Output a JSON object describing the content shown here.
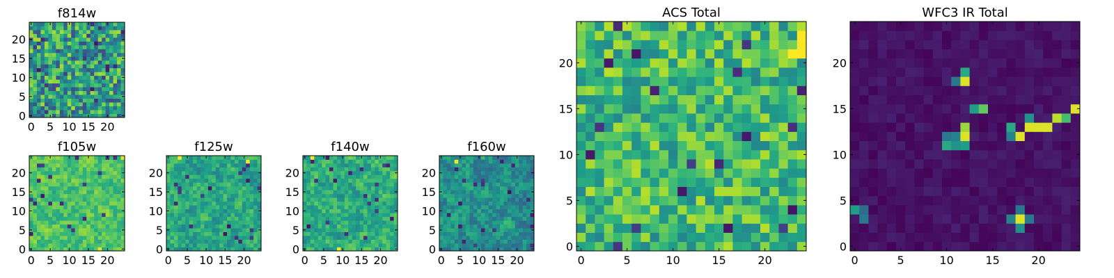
{
  "figure": {
    "description_type": "heatmap grid"
  },
  "chart_data": [
    {
      "type": "heatmap",
      "title": "f814w",
      "size": 25,
      "xticks": [
        0,
        5,
        10,
        15,
        20
      ],
      "yticks": [
        0,
        5,
        10,
        15,
        20
      ],
      "colormap": "viridis",
      "seed": 11,
      "base": 0.55,
      "noise": 0.32,
      "smooth": 0,
      "hot": [
        [
          24,
          24,
          0.35
        ],
        [
          23,
          24,
          0.25
        ]
      ]
    },
    {
      "type": "heatmap",
      "title": "f105w",
      "size": 25,
      "xticks": [
        0,
        5,
        10,
        15,
        20
      ],
      "yticks": [
        0,
        5,
        10,
        15,
        20
      ],
      "colormap": "viridis",
      "seed": 23,
      "base": 0.72,
      "noise": 0.22,
      "smooth": 1,
      "hot": [
        [
          18,
          0,
          0.3
        ],
        [
          24,
          24,
          0.3
        ]
      ]
    },
    {
      "type": "heatmap",
      "title": "f125w",
      "size": 25,
      "xticks": [
        0,
        5,
        10,
        15,
        20
      ],
      "yticks": [
        0,
        5,
        10,
        15,
        20
      ],
      "colormap": "viridis",
      "seed": 37,
      "base": 0.6,
      "noise": 0.25,
      "smooth": 1,
      "hot": [
        [
          21,
          23,
          0.35
        ],
        [
          3,
          24,
          0.3
        ]
      ]
    },
    {
      "type": "heatmap",
      "title": "f140w",
      "size": 25,
      "xticks": [
        0,
        5,
        10,
        15,
        20
      ],
      "yticks": [
        0,
        5,
        10,
        15,
        20
      ],
      "colormap": "viridis",
      "seed": 41,
      "base": 0.62,
      "noise": 0.25,
      "smooth": 1,
      "hot": [
        [
          2,
          24,
          0.35
        ],
        [
          9,
          0,
          0.3
        ]
      ]
    },
    {
      "type": "heatmap",
      "title": "f160w",
      "size": 25,
      "xticks": [
        0,
        5,
        10,
        15,
        20
      ],
      "yticks": [
        0,
        5,
        10,
        15,
        20
      ],
      "colormap": "viridis",
      "seed": 53,
      "base": 0.5,
      "noise": 0.25,
      "smooth": 1,
      "hot": [
        [
          4,
          23,
          0.4
        ],
        [
          11,
          24,
          0.3
        ]
      ]
    },
    {
      "type": "heatmap",
      "title": "ACS Total",
      "size": 25,
      "xticks": [
        0,
        5,
        10,
        15,
        20
      ],
      "yticks": [
        0,
        5,
        10,
        15,
        20
      ],
      "colormap": "viridis",
      "seed": 67,
      "base": 0.68,
      "noise": 0.22,
      "smooth": 0,
      "hot": [
        [
          24,
          24,
          0.4
        ],
        [
          24,
          23,
          0.35
        ],
        [
          24,
          22,
          0.35
        ],
        [
          24,
          21,
          0.3
        ],
        [
          23,
          21,
          0.25
        ]
      ]
    },
    {
      "type": "heatmap",
      "title": "WFC3 IR Total",
      "size": 25,
      "xticks": [
        0,
        5,
        10,
        15,
        20
      ],
      "yticks": [
        0,
        5,
        10,
        15,
        20
      ],
      "colormap": "viridis",
      "seed": 79,
      "base": 0.05,
      "noise": 0.04,
      "smooth": 0,
      "hot": [
        [
          12,
          19,
          0.6
        ],
        [
          12,
          18,
          0.95
        ],
        [
          11,
          18,
          0.4
        ],
        [
          13,
          15,
          0.55
        ],
        [
          14,
          15,
          0.75
        ],
        [
          12,
          13,
          0.85
        ],
        [
          12,
          12,
          0.95
        ],
        [
          11,
          12,
          0.45
        ],
        [
          10,
          12,
          0.4
        ],
        [
          10,
          11,
          0.6
        ],
        [
          11,
          11,
          0.5
        ],
        [
          12,
          11,
          0.55
        ],
        [
          19,
          13,
          0.95
        ],
        [
          20,
          13,
          0.95
        ],
        [
          21,
          13,
          0.95
        ],
        [
          22,
          14,
          0.9
        ],
        [
          23,
          14,
          0.7
        ],
        [
          24,
          15,
          0.95
        ],
        [
          18,
          12,
          0.95
        ],
        [
          17,
          12,
          0.45
        ],
        [
          17,
          13,
          0.6
        ],
        [
          19,
          14,
          0.5
        ],
        [
          0,
          4,
          0.55
        ],
        [
          1,
          4,
          0.35
        ],
        [
          1,
          3,
          0.4
        ],
        [
          18,
          3,
          0.95
        ],
        [
          17,
          3,
          0.45
        ],
        [
          18,
          2,
          0.5
        ],
        [
          19,
          3,
          0.4
        ],
        [
          18,
          4,
          0.4
        ]
      ]
    }
  ]
}
